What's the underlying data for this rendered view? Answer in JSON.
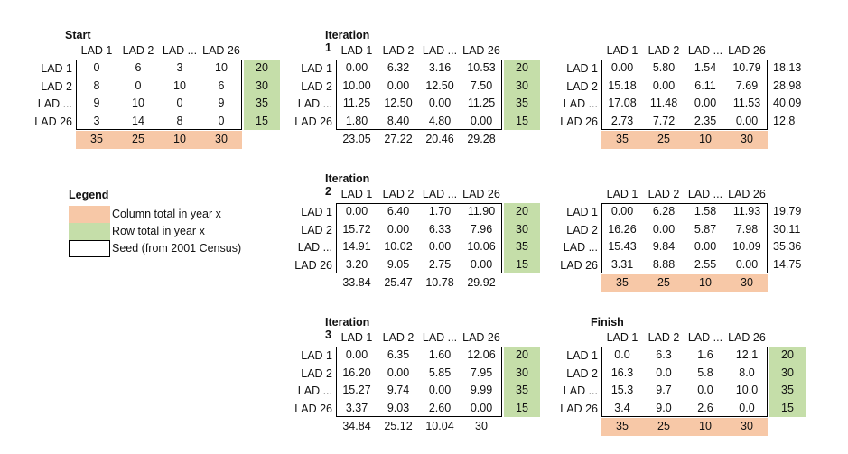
{
  "colors": {
    "green": "#c5dea9",
    "peach": "#f7c8a7",
    "border": "#000000"
  },
  "column_headers": [
    "LAD 1",
    "LAD 2",
    "LAD ...",
    "LAD 26"
  ],
  "row_headers": [
    "LAD 1",
    "LAD 2",
    "LAD ...",
    "LAD 26"
  ],
  "legend": {
    "title": "Legend",
    "items": [
      {
        "label": "Column total in year x",
        "swatch": "peach"
      },
      {
        "label": "Row total in year x",
        "swatch": "green"
      },
      {
        "label": "Seed (from 2001 Census)",
        "swatch": "outline"
      }
    ]
  },
  "matrices": [
    {
      "title": "Start",
      "cells": [
        [
          "0",
          "6",
          "3",
          "10"
        ],
        [
          "8",
          "0",
          "10",
          "6"
        ],
        [
          "9",
          "10",
          "0",
          "9"
        ],
        [
          "3",
          "14",
          "8",
          "0"
        ]
      ],
      "right": [
        "20",
        "30",
        "35",
        "15"
      ],
      "right_style": "green",
      "bottom": [
        "35",
        "25",
        "10",
        "30"
      ],
      "bottom_style": "peach"
    },
    {
      "title": "Iteration 1",
      "cells": [
        [
          "0.00",
          "6.32",
          "3.16",
          "10.53"
        ],
        [
          "10.00",
          "0.00",
          "12.50",
          "7.50"
        ],
        [
          "11.25",
          "12.50",
          "0.00",
          "11.25"
        ],
        [
          "1.80",
          "8.40",
          "4.80",
          "0.00"
        ]
      ],
      "right": [
        "20",
        "30",
        "35",
        "15"
      ],
      "right_style": "green",
      "bottom": [
        "23.05",
        "27.22",
        "20.46",
        "29.28"
      ],
      "bottom_style": "plain"
    },
    {
      "title": "",
      "cells": [
        [
          "0.00",
          "5.80",
          "1.54",
          "10.79"
        ],
        [
          "15.18",
          "0.00",
          "6.11",
          "7.69"
        ],
        [
          "17.08",
          "11.48",
          "0.00",
          "11.53"
        ],
        [
          "2.73",
          "7.72",
          "2.35",
          "0.00"
        ]
      ],
      "right": [
        "18.13",
        "28.98",
        "40.09",
        "12.8"
      ],
      "right_style": "plain",
      "bottom": [
        "35",
        "25",
        "10",
        "30"
      ],
      "bottom_style": "peach"
    },
    {
      "title": "Iteration 2",
      "cells": [
        [
          "0.00",
          "6.40",
          "1.70",
          "11.90"
        ],
        [
          "15.72",
          "0.00",
          "6.33",
          "7.96"
        ],
        [
          "14.91",
          "10.02",
          "0.00",
          "10.06"
        ],
        [
          "3.20",
          "9.05",
          "2.75",
          "0.00"
        ]
      ],
      "right": [
        "20",
        "30",
        "35",
        "15"
      ],
      "right_style": "green",
      "bottom": [
        "33.84",
        "25.47",
        "10.78",
        "29.92"
      ],
      "bottom_style": "plain"
    },
    {
      "title": "",
      "cells": [
        [
          "0.00",
          "6.28",
          "1.58",
          "11.93"
        ],
        [
          "16.26",
          "0.00",
          "5.87",
          "7.98"
        ],
        [
          "15.43",
          "9.84",
          "0.00",
          "10.09"
        ],
        [
          "3.31",
          "8.88",
          "2.55",
          "0.00"
        ]
      ],
      "right": [
        "19.79",
        "30.11",
        "35.36",
        "14.75"
      ],
      "right_style": "plain",
      "bottom": [
        "35",
        "25",
        "10",
        "30"
      ],
      "bottom_style": "peach"
    },
    {
      "title": "Iteration 3",
      "cells": [
        [
          "0.00",
          "6.35",
          "1.60",
          "12.06"
        ],
        [
          "16.20",
          "0.00",
          "5.85",
          "7.95"
        ],
        [
          "15.27",
          "9.74",
          "0.00",
          "9.99"
        ],
        [
          "3.37",
          "9.03",
          "2.60",
          "0.00"
        ]
      ],
      "right": [
        "20",
        "30",
        "35",
        "15"
      ],
      "right_style": "green",
      "bottom": [
        "34.84",
        "25.12",
        "10.04",
        "30"
      ],
      "bottom_style": "plain"
    },
    {
      "title": "Finish",
      "cells": [
        [
          "0.0",
          "6.3",
          "1.6",
          "12.1"
        ],
        [
          "16.3",
          "0.0",
          "5.8",
          "8.0"
        ],
        [
          "15.3",
          "9.7",
          "0.0",
          "10.0"
        ],
        [
          "3.4",
          "9.0",
          "2.6",
          "0.0"
        ]
      ],
      "right": [
        "20",
        "30",
        "35",
        "15"
      ],
      "right_style": "green",
      "bottom": [
        "35",
        "25",
        "10",
        "30"
      ],
      "bottom_style": "peach"
    }
  ]
}
